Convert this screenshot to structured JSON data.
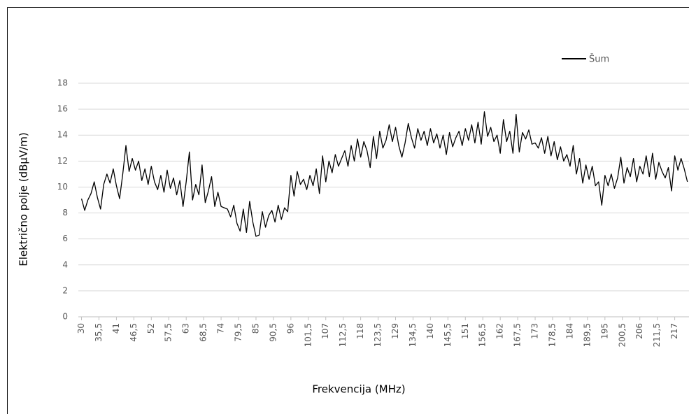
{
  "chart_data": {
    "type": "line",
    "x_label": "Frekvencija (MHz)",
    "y_label": "Električno polje (dBμV/m)",
    "x": [
      30,
      31,
      32,
      33,
      34,
      35,
      36,
      37,
      38,
      39,
      40,
      41,
      42,
      43,
      44,
      45,
      46,
      47,
      48,
      49,
      50,
      51,
      52,
      53,
      54,
      55,
      56,
      57,
      58,
      59,
      60,
      61,
      62,
      63,
      64,
      65,
      66,
      67,
      68,
      69,
      70,
      71,
      72,
      73,
      74,
      75,
      76,
      77,
      78,
      79,
      80,
      81,
      82,
      83,
      84,
      85,
      86,
      87,
      88,
      89,
      90,
      91,
      92,
      93,
      94,
      95,
      96,
      97,
      98,
      99,
      100,
      101,
      102,
      103,
      104,
      105,
      106,
      107,
      108,
      109,
      110,
      111,
      112,
      113,
      114,
      115,
      116,
      117,
      118,
      119,
      120,
      121,
      122,
      123,
      124,
      125,
      126,
      127,
      128,
      129,
      130,
      131,
      132,
      133,
      134,
      135,
      136,
      137,
      138,
      139,
      140,
      141,
      142,
      143,
      144,
      145,
      146,
      147,
      148,
      149,
      150,
      151,
      152,
      153,
      154,
      155,
      156,
      157,
      158,
      159,
      160,
      161,
      162,
      163,
      164,
      165,
      166,
      167,
      168,
      169,
      170,
      171,
      172,
      173,
      174,
      175,
      176,
      177,
      178,
      179,
      180,
      181,
      182,
      183,
      184,
      185,
      186,
      187,
      188,
      189,
      190,
      191,
      192,
      193,
      194,
      195,
      196,
      197,
      198,
      199,
      200,
      201,
      202,
      203,
      204,
      205,
      206,
      207,
      208,
      209,
      210,
      211,
      212,
      213,
      214,
      215,
      216,
      217,
      218,
      219,
      220,
      221
    ],
    "series": [
      {
        "name": "Šum",
        "color": "#000000",
        "values": [
          9.1,
          8.2,
          9.0,
          9.5,
          10.4,
          9.2,
          8.3,
          10.2,
          11.0,
          10.3,
          11.4,
          10.1,
          9.1,
          11.0,
          13.2,
          11.2,
          12.2,
          11.3,
          12.0,
          10.5,
          11.4,
          10.2,
          11.6,
          10.4,
          9.8,
          10.9,
          9.6,
          11.3,
          9.9,
          10.7,
          9.4,
          10.5,
          8.5,
          10.4,
          12.7,
          9.0,
          10.2,
          9.4,
          11.7,
          8.8,
          9.7,
          10.8,
          8.5,
          9.6,
          8.5,
          8.4,
          8.3,
          7.7,
          8.6,
          7.2,
          6.6,
          8.3,
          6.5,
          8.9,
          7.3,
          6.2,
          6.3,
          8.1,
          6.9,
          7.8,
          8.2,
          7.3,
          8.6,
          7.5,
          8.4,
          8.1,
          10.9,
          9.3,
          11.2,
          10.2,
          10.6,
          9.8,
          10.9,
          10.1,
          11.4,
          9.5,
          12.4,
          10.4,
          12.0,
          11.1,
          12.5,
          11.6,
          12.2,
          12.8,
          11.6,
          13.2,
          12.0,
          13.7,
          12.3,
          13.5,
          12.8,
          11.5,
          13.9,
          12.2,
          14.3,
          13.0,
          13.6,
          14.8,
          13.5,
          14.6,
          13.2,
          12.3,
          13.4,
          14.9,
          13.8,
          13.0,
          14.5,
          13.6,
          14.3,
          13.2,
          14.5,
          13.4,
          14.1,
          13.0,
          14.0,
          12.5,
          14.2,
          13.1,
          13.8,
          14.3,
          13.2,
          14.5,
          13.6,
          14.8,
          13.4,
          15.0,
          13.3,
          15.8,
          13.9,
          14.6,
          13.5,
          14.0,
          12.6,
          15.2,
          13.5,
          14.3,
          12.6,
          15.6,
          12.7,
          14.2,
          13.7,
          14.4,
          13.3,
          13.4,
          13.0,
          13.8,
          12.6,
          13.9,
          12.4,
          13.5,
          12.1,
          13.1,
          12.0,
          12.5,
          11.6,
          13.2,
          11.0,
          12.2,
          10.3,
          11.7,
          10.6,
          11.6,
          10.1,
          10.4,
          8.6,
          10.9,
          10.1,
          11.0,
          9.9,
          10.7,
          12.3,
          10.3,
          11.5,
          10.8,
          12.2,
          10.4,
          11.6,
          11.0,
          12.4,
          10.8,
          12.6,
          10.6,
          11.9,
          11.2,
          10.7,
          11.5,
          9.7,
          12.4,
          11.3,
          12.2,
          11.4,
          10.4
        ]
      }
    ],
    "xlim": [
      29,
      221.5
    ],
    "xticks": [
      30,
      {
        "value": 35.5,
        "label": "35,5"
      },
      41,
      {
        "value": 46.5,
        "label": "46,5"
      },
      52,
      {
        "value": 57.5,
        "label": "57,5"
      },
      63,
      {
        "value": 68.5,
        "label": "68,5"
      },
      74,
      {
        "value": 79.5,
        "label": "79,5"
      },
      85,
      {
        "value": 90.5,
        "label": "90,5"
      },
      96,
      {
        "value": 101.5,
        "label": "101,5"
      },
      107,
      {
        "value": 112.5,
        "label": "112,5"
      },
      118,
      {
        "value": 123.5,
        "label": "123,5"
      },
      129,
      {
        "value": 134.5,
        "label": "134,5"
      },
      140,
      {
        "value": 145.5,
        "label": "145,5"
      },
      151,
      {
        "value": 156.5,
        "label": "156,5"
      },
      162,
      {
        "value": 167.5,
        "label": "167,5"
      },
      173,
      {
        "value": 178.5,
        "label": "178,5"
      },
      184,
      {
        "value": 189.5,
        "label": "189,5"
      },
      195,
      {
        "value": 200.5,
        "label": "200,5"
      },
      206,
      {
        "value": 211.5,
        "label": "211,5"
      },
      217
    ],
    "ylim": [
      0,
      18
    ],
    "yticks": [
      0,
      2,
      4,
      6,
      8,
      10,
      12,
      14,
      16,
      18
    ],
    "grid": true,
    "legend": "top-right"
  }
}
